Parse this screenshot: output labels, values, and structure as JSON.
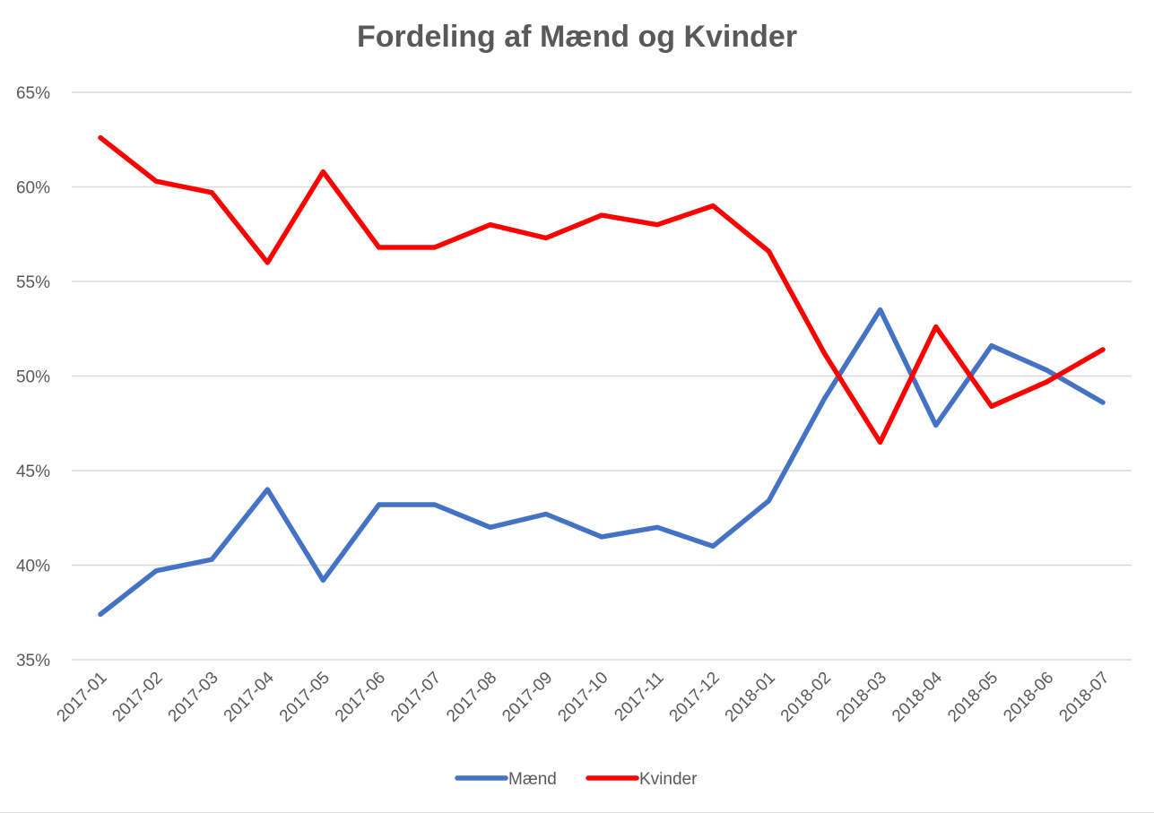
{
  "chart_data": {
    "type": "line",
    "title": "Fordeling af Mænd og Kvinder",
    "xlabel": "",
    "ylabel": "",
    "categories": [
      "2017-01",
      "2017-02",
      "2017-03",
      "2017-04",
      "2017-05",
      "2017-06",
      "2017-07",
      "2017-08",
      "2017-09",
      "2017-10",
      "2017-11",
      "2017-12",
      "2018-01",
      "2018-02",
      "2018-03",
      "2018-04",
      "2018-05",
      "2018-06",
      "2018-07"
    ],
    "series": [
      {
        "name": "Mænd",
        "color": "#4472c4",
        "values": [
          37.4,
          39.7,
          40.3,
          44.0,
          39.2,
          43.2,
          43.2,
          42.0,
          42.7,
          41.5,
          42.0,
          41.0,
          43.4,
          48.8,
          53.5,
          47.4,
          51.6,
          50.3,
          48.6
        ]
      },
      {
        "name": "Kvinder",
        "color": "#ff0000",
        "values": [
          62.6,
          60.3,
          59.7,
          56.0,
          60.8,
          56.8,
          56.8,
          58.0,
          57.3,
          58.5,
          58.0,
          59.0,
          56.6,
          51.2,
          46.5,
          52.6,
          48.4,
          49.7,
          51.4
        ]
      }
    ],
    "ylim": [
      35,
      65
    ],
    "yticks": [
      35,
      40,
      45,
      50,
      55,
      60,
      65
    ],
    "ytick_labels": [
      "35%",
      "40%",
      "45%",
      "50%",
      "55%",
      "60%",
      "65%"
    ],
    "grid": true,
    "legend_position": "bottom"
  }
}
